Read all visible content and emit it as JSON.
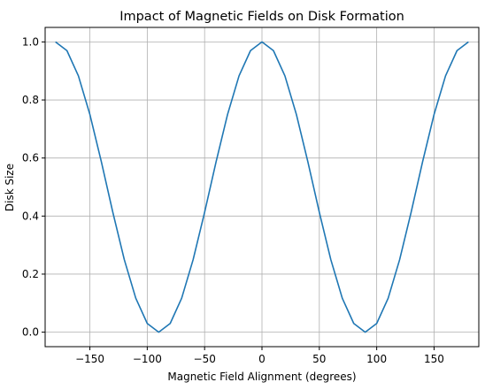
{
  "chart_data": {
    "type": "line",
    "title": "Impact of Magnetic Fields on Disk Formation",
    "xlabel": "Magnetic Field Alignment (degrees)",
    "ylabel": "Disk Size",
    "xlim": [
      -189,
      189
    ],
    "ylim": [
      -0.05,
      1.05
    ],
    "xticks": [
      -150,
      -100,
      -50,
      0,
      50,
      100,
      150
    ],
    "xtick_labels": [
      "−150",
      "−100",
      "−50",
      "0",
      "50",
      "100",
      "150"
    ],
    "yticks": [
      0.0,
      0.2,
      0.4,
      0.6,
      0.8,
      1.0
    ],
    "ytick_labels": [
      "0.0",
      "0.2",
      "0.4",
      "0.6",
      "0.8",
      "1.0"
    ],
    "grid": true,
    "series": [
      {
        "color": "#1f77b4",
        "x": [
          -180,
          -170,
          -160,
          -150,
          -140,
          -130,
          -120,
          -110,
          -100,
          -90,
          -80,
          -70,
          -60,
          -50,
          -40,
          -30,
          -20,
          -10,
          0,
          10,
          20,
          30,
          40,
          50,
          60,
          70,
          80,
          90,
          100,
          110,
          120,
          130,
          140,
          150,
          160,
          170,
          180
        ],
        "y": [
          1.0,
          0.97,
          0.883,
          0.75,
          0.587,
          0.413,
          0.25,
          0.117,
          0.03,
          0.0,
          0.03,
          0.117,
          0.25,
          0.413,
          0.587,
          0.75,
          0.883,
          0.97,
          1.0,
          0.97,
          0.883,
          0.75,
          0.587,
          0.413,
          0.25,
          0.117,
          0.03,
          0.0,
          0.03,
          0.117,
          0.25,
          0.413,
          0.587,
          0.75,
          0.883,
          0.97,
          1.0
        ]
      }
    ]
  }
}
